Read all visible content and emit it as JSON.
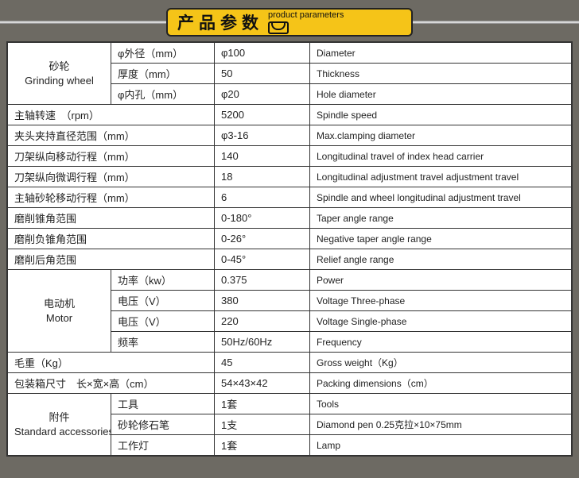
{
  "header": {
    "cn": "产品参数",
    "en": "product parameters"
  },
  "columns": {
    "a_width": 130,
    "b_width": 130,
    "c_width": 120,
    "d_width": 330
  },
  "groups": {
    "grinding": {
      "cn": "砂轮",
      "en": "Grinding wheel"
    },
    "motor": {
      "cn": "电动机",
      "en": "Motor"
    },
    "accessory": {
      "cn": "附件",
      "en": "Standard accessories"
    }
  },
  "rows": [
    {
      "group": "grinding",
      "b": "φ外径（mm）",
      "c": "φ100",
      "d": "Diameter"
    },
    {
      "group": "grinding",
      "b": "厚度（mm）",
      "c": "50",
      "d": "Thickness"
    },
    {
      "group": "grinding",
      "b": "φ内孔（mm）",
      "c": "φ20",
      "d": "Hole diameter"
    },
    {
      "span2": true,
      "a": "主轴转速　（rpm）",
      "c": "5200",
      "d": "Spindle speed"
    },
    {
      "span2": true,
      "a": "夹头夹持直径范围（mm）",
      "c": "φ3-16",
      "d": "Max.clamping diameter"
    },
    {
      "span2": true,
      "a": "刀架纵向移动行程（mm）",
      "c": "140",
      "d": "Longitudinal travel of index head carrier"
    },
    {
      "span2": true,
      "a": "刀架纵向微调行程（mm）",
      "c": "18",
      "d": "Longitudinal adjustment travel adjustment travel"
    },
    {
      "span2": true,
      "a": "主轴砂轮移动行程（mm）",
      "c": "6",
      "d": "Spindle and wheel longitudinal adjustment travel"
    },
    {
      "span2": true,
      "a": "磨削锥角范围",
      "c": "0-180°",
      "d": "Taper angle range"
    },
    {
      "span2": true,
      "a": "磨削负锥角范围",
      "c": "0-26°",
      "d": "Negative taper angle range"
    },
    {
      "span2": true,
      "a": "磨削后角范围",
      "c": "0-45°",
      "d": "Relief angle range"
    },
    {
      "group": "motor",
      "b": "功率（kw）",
      "c": "0.375",
      "d": "Power"
    },
    {
      "group": "motor",
      "b": "电压（V）",
      "c": "380",
      "d": "Voltage Three-phase"
    },
    {
      "group": "motor",
      "b": "电压（V）",
      "c": "220",
      "d": "Voltage Single-phase"
    },
    {
      "group": "motor",
      "b": "频率",
      "c": "50Hz/60Hz",
      "d": "Frequency"
    },
    {
      "span2": true,
      "a": "毛重（Kg）",
      "c": "45",
      "d": "Gross weight（Kg）"
    },
    {
      "span2": true,
      "a": "包装箱尺寸　长×宽×高（cm）",
      "c": "54×43×42",
      "d": "Packing dimensions（cm）"
    },
    {
      "group": "accessory",
      "b": "工具",
      "c": "1套",
      "d": "Tools"
    },
    {
      "group": "accessory",
      "b": "砂轮修石笔",
      "c": "1支",
      "d": "Diamond pen 0.25克拉×10×75mm"
    },
    {
      "group": "accessory",
      "b": "工作灯",
      "c": "1套",
      "d": "Lamp"
    }
  ]
}
